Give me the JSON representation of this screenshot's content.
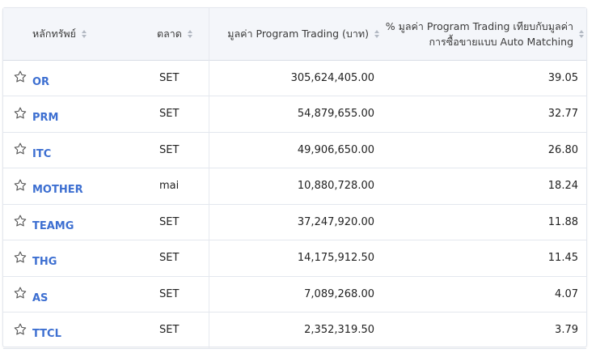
{
  "header": {
    "col_symbol": "หลักทรัพย์",
    "col_market": "ตลาด",
    "col_value": "มูลค่า Program Trading (บาท)",
    "col_pct_line1": "% มูลค่า Program Trading เทียบกับมูลค่า",
    "col_pct_line2": "การซื้อขายแบบ Auto Matching"
  },
  "rows": [
    {
      "symbol": "OR",
      "market": "SET",
      "value": "305,624,405.00",
      "pct": "39.05"
    },
    {
      "symbol": "PRM",
      "market": "SET",
      "value": "54,879,655.00",
      "pct": "32.77"
    },
    {
      "symbol": "ITC",
      "market": "SET",
      "value": "49,906,650.00",
      "pct": "26.80"
    },
    {
      "symbol": "MOTHER",
      "market": "mai",
      "value": "10,880,728.00",
      "pct": "18.24"
    },
    {
      "symbol": "TEAMG",
      "market": "SET",
      "value": "37,247,920.00",
      "pct": "11.88"
    },
    {
      "symbol": "THG",
      "market": "SET",
      "value": "14,175,912.50",
      "pct": "11.45"
    },
    {
      "symbol": "AS",
      "market": "SET",
      "value": "7,089,268.00",
      "pct": "4.07"
    },
    {
      "symbol": "TTCL",
      "market": "SET",
      "value": "2,352,319.50",
      "pct": "3.79"
    }
  ],
  "colors": {
    "symbol_link": "#3d6fd1",
    "header_bg": "#f4f6fa",
    "border": "#e3e7ee"
  },
  "icons": {
    "favorite": "star-outline-icon",
    "sort": "sort-arrows-icon"
  }
}
